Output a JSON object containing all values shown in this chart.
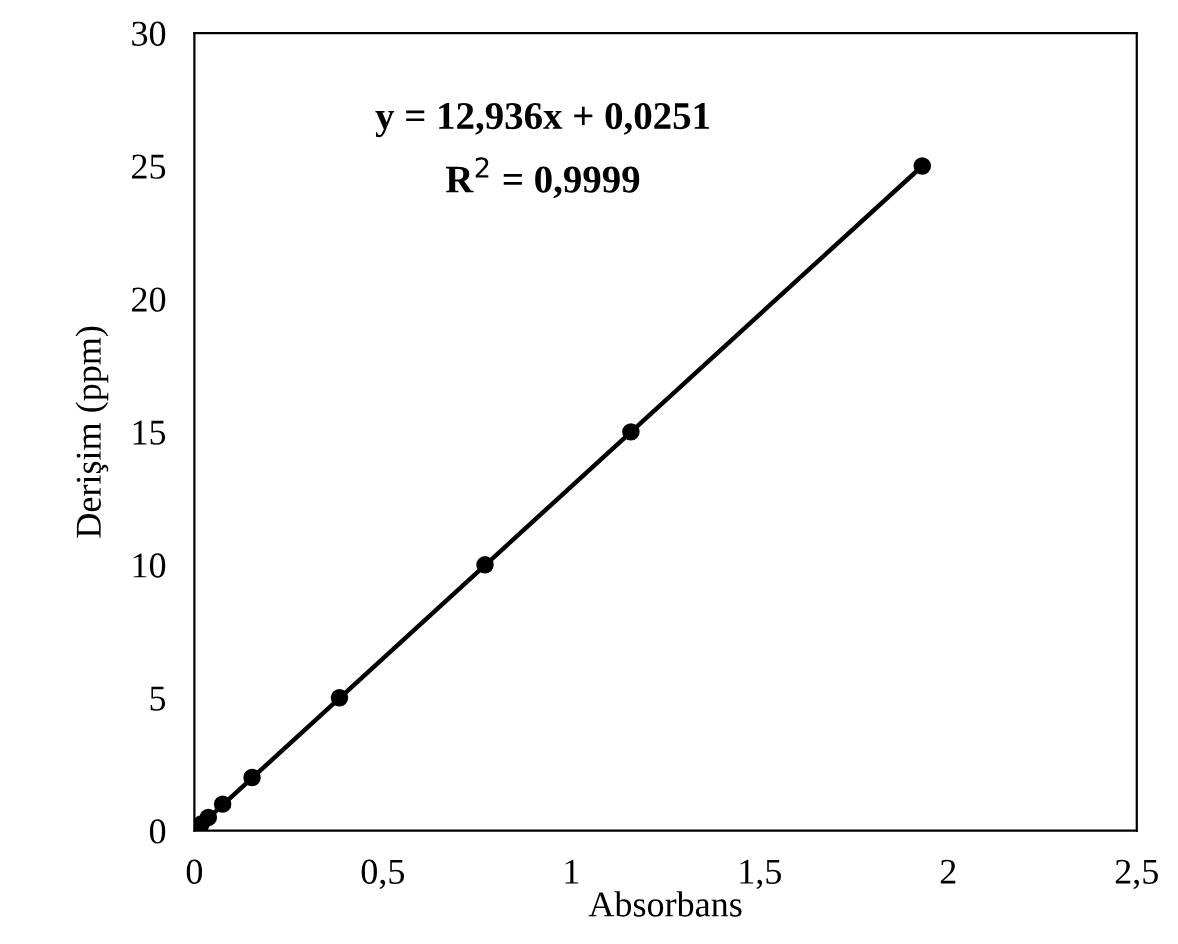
{
  "chart_data": {
    "type": "scatter",
    "xlabel": "Absorbans",
    "ylabel": "Derişim (ppm)",
    "annotations": [
      "y = 12,936x + 0,0251",
      "R$^{2}$ = 0,9999"
    ],
    "series": [
      {
        "color": "#000000",
        "marker": "circle",
        "x": [
          0.018,
          0.037,
          0.075,
          0.153,
          0.385,
          0.771,
          1.158,
          1.931
        ],
        "values": [
          0.25,
          0.5,
          1,
          2,
          5,
          10,
          15,
          25
        ]
      },
      {
        "type": "line",
        "color": "#000000",
        "x": [
          0,
          1.931
        ],
        "values": [
          0,
          25
        ]
      }
    ],
    "xlim": [
      0,
      2.5
    ],
    "ylim": [
      0,
      30
    ],
    "xticks": [
      0,
      {
        "value": 0.5,
        "label": "0,5"
      },
      1,
      {
        "value": 1.5,
        "label": "1,5"
      },
      2,
      {
        "value": 2.5,
        "label": "2,5"
      }
    ],
    "yticks": [
      0,
      5,
      10,
      15,
      20,
      25,
      30
    ],
    "grid": false,
    "legend": false
  }
}
